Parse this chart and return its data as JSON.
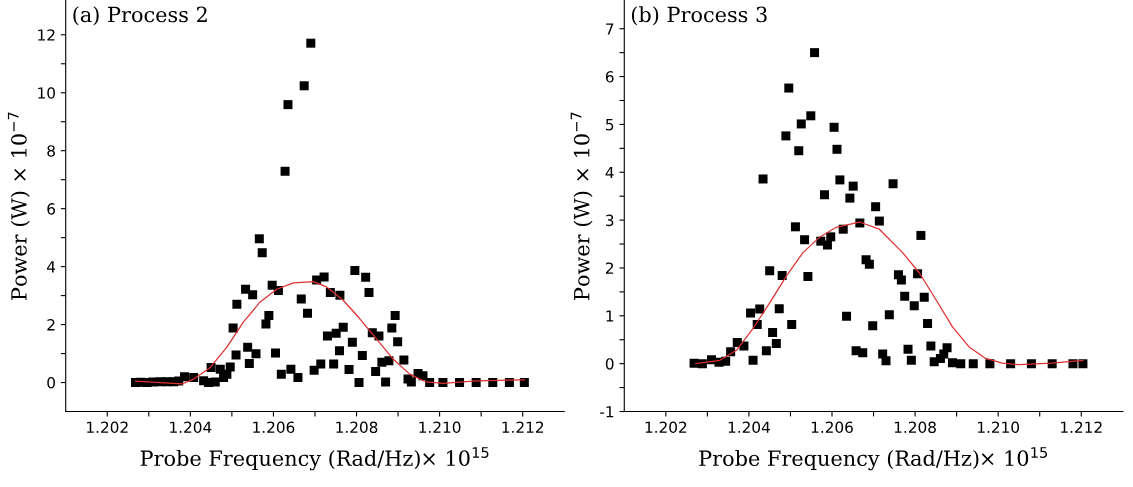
{
  "chart_data": [
    {
      "type": "scatter",
      "title": "(a) Process 2",
      "xlabel": "Probe Frequency (Rad/Hz)× 10$^{15}$",
      "ylabel": "Power (W) × 10$^{−7}$",
      "xlim": [
        1.201,
        1.213
      ],
      "ylim": [
        -1,
        13.2
      ],
      "xticks": [
        1.202,
        {
          "value": 1.203,
          "label": null
        },
        1.204,
        {
          "value": 1.205,
          "label": null
        },
        1.206,
        {
          "value": 1.207,
          "label": null
        },
        1.208,
        {
          "value": 1.209,
          "label": null
        },
        {
          "value": 1.21,
          "label": "1.210"
        },
        {
          "value": 1.211,
          "label": null
        },
        1.212
      ],
      "yticks": [
        0,
        {
          "value": 1,
          "label": null
        },
        2,
        {
          "value": 3,
          "label": null
        },
        4,
        {
          "value": 5,
          "label": null
        },
        6,
        {
          "value": 7,
          "label": null
        },
        8,
        {
          "value": 9,
          "label": null
        },
        10,
        {
          "value": 11,
          "label": null
        },
        12
      ],
      "grid": false,
      "legend": false,
      "series": [
        {
          "color": "#000000",
          "marker": "square",
          "x": [
            1.20268,
            1.2028,
            1.20296,
            1.2031,
            1.20328,
            1.20344,
            1.2036,
            1.20372,
            1.20386,
            1.20408,
            1.20432,
            1.20444,
            1.2045,
            1.2046,
            1.20472,
            1.2048,
            1.20488,
            1.20496,
            1.20503,
            1.2051,
            1.20512,
            1.20538,
            1.20542,
            1.20533,
            1.2055,
            1.20558,
            1.20566,
            1.20573,
            1.20582,
            1.20589,
            1.20597,
            1.20605,
            1.20612,
            1.20619,
            1.20628,
            1.20635,
            1.20642,
            1.20659,
            1.20667,
            1.20674,
            1.20682,
            1.2069,
            1.20698,
            1.20704,
            1.20714,
            1.20722,
            1.2073,
            1.20737,
            1.20745,
            1.20751,
            1.2076,
            1.20759,
            1.20768,
            1.20782,
            1.2079,
            1.20796,
            1.20806,
            1.20814,
            1.20822,
            1.2083,
            1.20838,
            1.20846,
            1.20854,
            1.20861,
            1.2087,
            1.20878,
            1.20885,
            1.20893,
            1.20899,
            1.20914,
            1.20924,
            1.20932,
            1.20948,
            1.2096,
            1.20976,
            1.21008,
            1.21048,
            1.21088,
            1.21128,
            1.21168,
            1.21204
          ],
          "values": [
            0,
            0.01,
            0,
            0.02,
            0.03,
            0.03,
            0.03,
            0.05,
            0.2,
            0.17,
            0.06,
            0,
            0.52,
            0.02,
            0.46,
            0.17,
            0.29,
            0.54,
            1.88,
            0.95,
            2.7,
            1.22,
            0.66,
            3.22,
            3.03,
            0.99,
            4.96,
            4.48,
            2.02,
            2.31,
            3.36,
            1.02,
            3.18,
            0.29,
            7.29,
            9.59,
            0.46,
            0.17,
            2.88,
            10.24,
            2.39,
            11.71,
            0.42,
            3.54,
            0.64,
            3.64,
            1.61,
            3.11,
            0.64,
            1.7,
            3.01,
            1.1,
            1.91,
            0.45,
            1.39,
            3.87,
            0,
            0.93,
            3.63,
            3.11,
            1.72,
            0.38,
            1.61,
            0.7,
            0.02,
            0.75,
            1.88,
            2.31,
            1.41,
            0.78,
            0.12,
            0.02,
            0.31,
            0.23,
            0,
            0,
            0,
            0,
            0,
            0,
            0
          ]
        },
        {
          "type": "line",
          "color": "#e03030",
          "x": [
            1.20268,
            1.20328,
            1.2038,
            1.20408,
            1.20448,
            1.20488,
            1.20528,
            1.20568,
            1.20608,
            1.20648,
            1.20696,
            1.20728,
            1.20768,
            1.20808,
            1.20848,
            1.20888,
            1.20928,
            1.20968,
            1.21008,
            1.21088,
            1.21204
          ],
          "values": [
            0.05,
            0,
            -0.05,
            0.12,
            0.52,
            1.22,
            2.09,
            2.78,
            3.22,
            3.44,
            3.48,
            3.3,
            2.84,
            2.2,
            1.51,
            0.81,
            0.29,
            0.02,
            -0.03,
            0.06,
            0.09
          ]
        }
      ]
    },
    {
      "type": "scatter",
      "title": "(b) Process 3",
      "xlabel": "Probe Frequency (Rad/Hz)× 10$^{15}$",
      "ylabel": "Power (W) × 10$^{−7}$",
      "xlim": [
        1.201,
        1.213
      ],
      "ylim": [
        -1,
        7.6
      ],
      "xticks": [
        1.202,
        {
          "value": 1.203,
          "label": null
        },
        1.204,
        {
          "value": 1.205,
          "label": null
        },
        1.206,
        {
          "value": 1.207,
          "label": null
        },
        1.208,
        {
          "value": 1.209,
          "label": null
        },
        {
          "value": 1.21,
          "label": "1.210"
        },
        {
          "value": 1.211,
          "label": null
        },
        1.212
      ],
      "yticks": [
        -1,
        {
          "value": -0.5,
          "label": null
        },
        0,
        {
          "value": 0.5,
          "label": null
        },
        1,
        {
          "value": 1.5,
          "label": null
        },
        2,
        {
          "value": 2.5,
          "label": null
        },
        3,
        {
          "value": 3.5,
          "label": null
        },
        4,
        {
          "value": 4.5,
          "label": null
        },
        5,
        {
          "value": 5.5,
          "label": null
        },
        6,
        {
          "value": 6.5,
          "label": null
        },
        7
      ],
      "grid": false,
      "legend": false,
      "series": [
        {
          "color": "#000000",
          "marker": "square",
          "x": [
            1.20268,
            1.20288,
            1.2031,
            1.20328,
            1.20344,
            1.20356,
            1.20372,
            1.20388,
            1.20404,
            1.2041,
            1.2042,
            1.20426,
            1.20434,
            1.20442,
            1.2045,
            1.20457,
            1.20466,
            1.20473,
            1.2048,
            1.20489,
            1.20496,
            1.20503,
            1.20512,
            1.2052,
            1.20526,
            1.20534,
            1.20542,
            1.20549,
            1.20558,
            1.20573,
            1.20582,
            1.20589,
            1.20597,
            1.20605,
            1.20612,
            1.20619,
            1.20627,
            1.20635,
            1.20643,
            1.20651,
            1.20658,
            1.20667,
            1.20674,
            1.20682,
            1.2069,
            1.20698,
            1.20705,
            1.20714,
            1.20722,
            1.2073,
            1.20738,
            1.20747,
            1.2076,
            1.20767,
            1.20775,
            1.20783,
            1.20791,
            1.20798,
            1.20806,
            1.20814,
            1.20822,
            1.2083,
            1.20838,
            1.20846,
            1.20861,
            1.20869,
            1.20877,
            1.2089,
            1.2091,
            1.2094,
            1.2098,
            1.2103,
            1.2108,
            1.2113,
            1.2118,
            1.21204
          ],
          "values": [
            0.01,
            0,
            0.08,
            0.03,
            0.05,
            0.25,
            0.44,
            0.37,
            1.06,
            0.07,
            0.82,
            1.14,
            3.86,
            0.27,
            1.94,
            0.65,
            0.42,
            1.15,
            1.84,
            4.76,
            5.76,
            0.82,
            2.86,
            4.45,
            5.01,
            2.59,
            1.82,
            5.18,
            6.5,
            2.56,
            3.53,
            2.48,
            2.65,
            4.94,
            4.48,
            3.84,
            2.81,
            0.99,
            3.46,
            3.71,
            0.27,
            2.94,
            0.23,
            2.17,
            2.08,
            0.79,
            3.28,
            2.98,
            0.2,
            0.06,
            1.02,
            3.76,
            1.86,
            1.75,
            1.41,
            0.3,
            0.07,
            1.21,
            1.88,
            2.68,
            1.39,
            0.84,
            0.37,
            0.04,
            0.11,
            0.2,
            0.33,
            0.02,
            0,
            0,
            0,
            0,
            0,
            0,
            0,
            0
          ]
        },
        {
          "type": "line",
          "color": "#e03030",
          "x": [
            1.20272,
            1.2033,
            1.2037,
            1.2041,
            1.2045,
            1.2049,
            1.2053,
            1.2057,
            1.2061,
            1.20666,
            1.20714,
            1.2077,
            1.2081,
            1.2085,
            1.2089,
            1.2093,
            1.2097,
            1.2101,
            1.2105,
            1.21128,
            1.21204
          ],
          "values": [
            0,
            0.07,
            0.28,
            0.74,
            1.27,
            1.83,
            2.32,
            2.64,
            2.85,
            2.96,
            2.81,
            2.32,
            1.9,
            1.34,
            0.77,
            0.35,
            0.11,
            0.01,
            -0.02,
            0.01,
            0.07
          ]
        }
      ]
    }
  ]
}
